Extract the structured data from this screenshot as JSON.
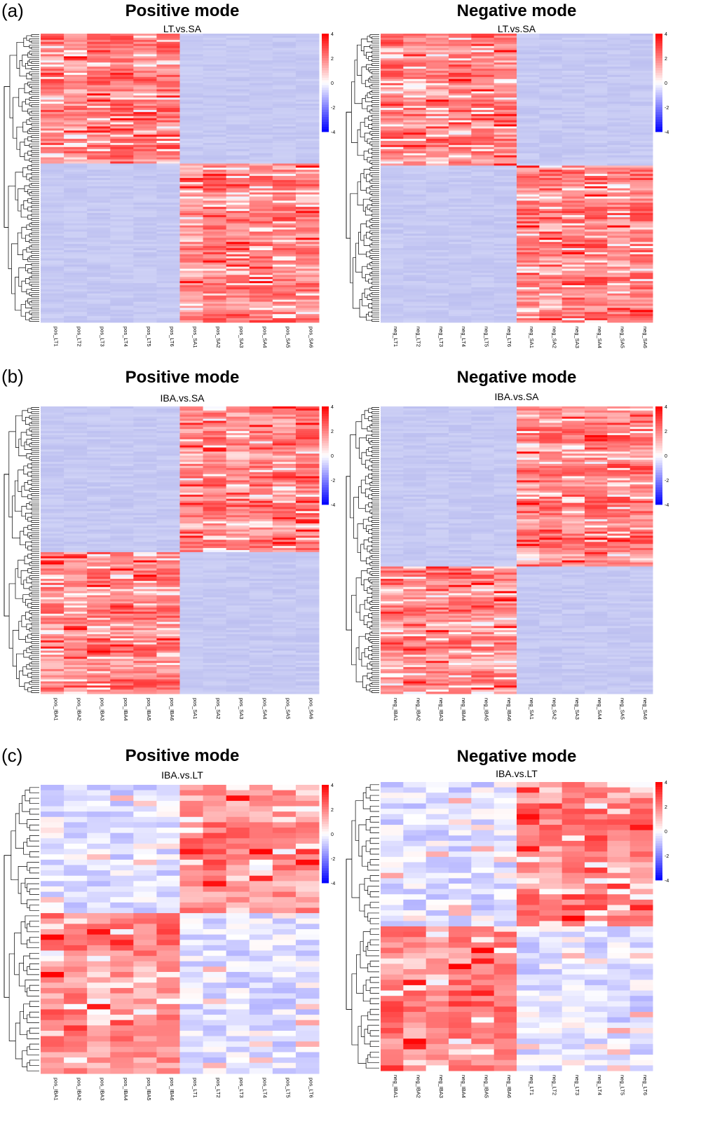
{
  "panels": [
    {
      "label": "(a)"
    },
    {
      "label": "(b)"
    },
    {
      "label": "(c)"
    }
  ],
  "colors": {
    "high": "#ff0000",
    "mid": "#ffffff",
    "low": "#0000ff",
    "base_low": "#c6c9f3"
  },
  "chart_data": [
    {
      "type": "heatmap",
      "title": "Positive mode",
      "subtitle": "LT.vs.SA",
      "columns": [
        "pos_LT1",
        "pos_LT2",
        "pos_LT3",
        "pos_LT4",
        "pos_LT5",
        "pos_LT6",
        "pos_SA1",
        "pos_SA2",
        "pos_SA3",
        "pos_SA4",
        "pos_SA5",
        "pos_SA6"
      ],
      "pattern": "top rows high in LT1–LT6, bottom rows high in SA1–SA6",
      "colorbar": {
        "ticks": [
          "4",
          "2",
          "0",
          "-2",
          "-4"
        ],
        "range": [
          -4,
          4
        ]
      }
    },
    {
      "type": "heatmap",
      "title": "Negative mode",
      "subtitle": "LT.vs.SA",
      "columns": [
        "neg_LT1",
        "neg_LT2",
        "neg_LT3",
        "neg_LT4",
        "neg_LT5",
        "neg_LT6",
        "neg_SA1",
        "neg_SA2",
        "neg_SA3",
        "neg_SA4",
        "neg_SA5",
        "neg_SA6"
      ],
      "pattern": "top rows high in LT1–LT6, bottom rows high in SA1–SA6",
      "colorbar": {
        "ticks": [
          "4",
          "2",
          "0",
          "-2",
          "-4"
        ],
        "range": [
          -4,
          4
        ]
      }
    },
    {
      "type": "heatmap",
      "title": "Positive mode",
      "subtitle": "IBA.vs.SA",
      "columns": [
        "pos_IBA1",
        "pos_IBA2",
        "pos_IBA3",
        "pos_IBA4",
        "pos_IBA5",
        "pos_IBA6",
        "pos_SA1",
        "pos_SA2",
        "pos_SA3",
        "pos_SA4",
        "pos_SA5",
        "pos_SA6"
      ],
      "pattern": "top rows high in SA1–SA6, bottom rows high in IBA1–IBA6",
      "colorbar": {
        "ticks": [
          "4",
          "2",
          "0",
          "-2",
          "-4"
        ],
        "range": [
          -4,
          4
        ]
      }
    },
    {
      "type": "heatmap",
      "title": "Negative mode",
      "subtitle": "IBA.vs.SA",
      "columns": [
        "neg_IBA1",
        "neg_IBA2",
        "neg_IBA3",
        "neg_IBA4",
        "neg_IBA5",
        "neg_IBA6",
        "neg_SA1",
        "neg_SA2",
        "neg_SA3",
        "neg_SA4",
        "neg_SA5",
        "neg_SA6"
      ],
      "pattern": "top rows high in SA1–SA6, bottom rows high in IBA1–IBA6",
      "colorbar": {
        "ticks": [
          "4",
          "2",
          "0",
          "-2",
          "-4"
        ],
        "range": [
          -4,
          4
        ]
      }
    },
    {
      "type": "heatmap",
      "title": "Positive mode",
      "subtitle": "IBA.vs.LT",
      "columns": [
        "pos_IBA1",
        "pos_IBA2",
        "pos_IBA3",
        "pos_IBA4",
        "pos_IBA5",
        "pos_IBA6",
        "pos_LT1",
        "pos_LT2",
        "pos_LT3",
        "pos_LT4",
        "pos_LT5",
        "pos_LT6"
      ],
      "pattern": "top rows high in LT1–LT6, bottom rows high in IBA1–IBA6",
      "colorbar": {
        "ticks": [
          "4",
          "2",
          "0",
          "-2",
          "-4"
        ],
        "range": [
          -4,
          4
        ]
      }
    },
    {
      "type": "heatmap",
      "title": "Negative mode",
      "subtitle": "IBA.vs.LT",
      "columns": [
        "neg_IBA1",
        "neg_IBA2",
        "neg_IBA3",
        "neg_IBA4",
        "neg_IBA5",
        "neg_IBA6",
        "neg_LT1",
        "neg_LT2",
        "neg_LT3",
        "neg_LT4",
        "neg_LT5",
        "neg_LT6"
      ],
      "pattern": "top rows high in LT1–LT6, bottom rows high in IBA1–IBA6",
      "colorbar": {
        "ticks": [
          "4",
          "2",
          "0",
          "-2",
          "-4"
        ],
        "range": [
          -4,
          4
        ]
      }
    }
  ]
}
